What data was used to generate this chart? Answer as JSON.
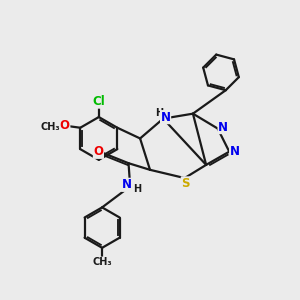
{
  "bg_color": "#ebebeb",
  "line_color": "#1a1a1a",
  "bond_width": 1.6,
  "atom_colors": {
    "N": "#0000ee",
    "O": "#ee0000",
    "S": "#ccaa00",
    "Cl": "#00bb00",
    "H": "#1a1a1a",
    "C": "#1a1a1a"
  },
  "font_size": 8.5,
  "figsize": [
    3.0,
    3.0
  ],
  "dpi": 100
}
